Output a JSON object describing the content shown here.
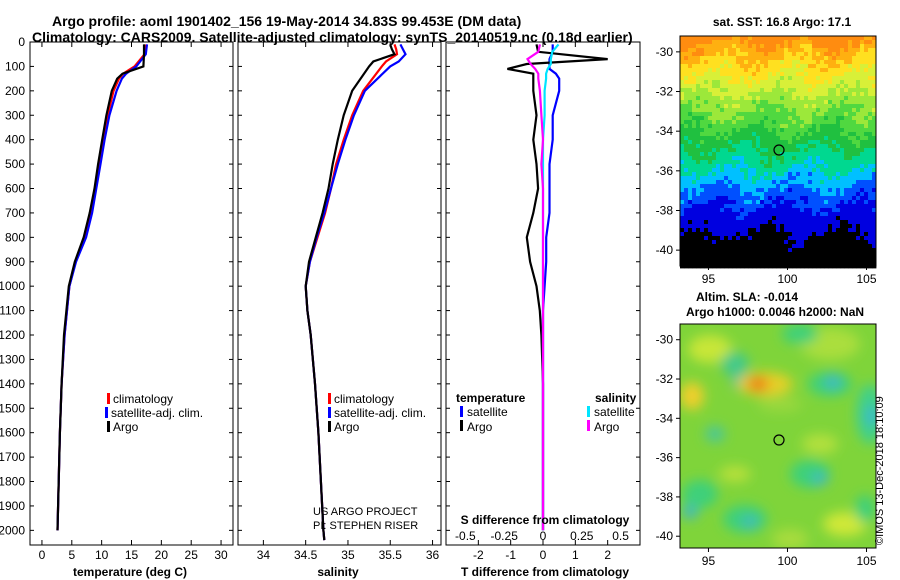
{
  "header": {
    "line1": "Argo profile: aoml 1901402_156 19-May-2014 34.83S 99.453E (DM data)",
    "line2": "Climatology: CARS2009. Satellite-adjusted climatology: synTS_20140519.nc (0.18d earlier)"
  },
  "credits": {
    "project": "US ARGO PROJECT",
    "pi": "PI: STEPHEN RISER"
  },
  "copyright": "©IMOS 13-Dec-2018 18:10:09",
  "maps": {
    "sst_title": "sat. SST: 16.8 Argo: 17.1",
    "sla_title1": "Altim. SLA: -0.014",
    "sla_title2": "Argo h1000: 0.0046 h2000: NaN",
    "float_position": {
      "lon": 99.45,
      "lat": -34.83
    },
    "lat_ticks": [
      "-30",
      "-32",
      "-34",
      "-36",
      "-38",
      "-40"
    ],
    "lon_ticks": [
      "95",
      "100",
      "105"
    ]
  },
  "colors": {
    "climatology": "#ff0000",
    "satellite_adj": "#0000ff",
    "argo": "#000000",
    "salinity_satellite": "#00e5ff",
    "salinity_argo": "#ff00ff"
  },
  "chart_data": [
    {
      "type": "line",
      "xlabel": "temperature (deg C)",
      "ylabel": "",
      "xlim": [
        -2,
        32
      ],
      "ylim": [
        2060,
        0
      ],
      "xticks": [
        "0",
        "5",
        "10",
        "15",
        "20",
        "25",
        "30"
      ],
      "yticks": [
        "0",
        "100",
        "200",
        "300",
        "400",
        "500",
        "600",
        "700",
        "800",
        "900",
        "1000",
        "1100",
        "1200",
        "1300",
        "1400",
        "1500",
        "1600",
        "1700",
        "1800",
        "1900",
        "2000"
      ],
      "legend": [
        "climatology",
        "satellite-adj. clim.",
        "Argo"
      ],
      "legend_position": "bottom-right",
      "depth": [
        10,
        50,
        100,
        130,
        150,
        200,
        300,
        400,
        500,
        600,
        700,
        800,
        900,
        1000,
        1200,
        1400,
        1600,
        1800,
        2000
      ],
      "series": [
        {
          "name": "climatology",
          "values": [
            17.3,
            17.2,
            15.5,
            13.6,
            12.9,
            12.0,
            11.0,
            10.3,
            9.6,
            8.9,
            8.2,
            7.2,
            5.6,
            4.6,
            3.8,
            3.3,
            3.0,
            2.8,
            2.6
          ]
        },
        {
          "name": "satellite-adj. clim.",
          "values": [
            17.6,
            17.4,
            15.8,
            14.1,
            13.4,
            12.5,
            11.3,
            10.5,
            9.8,
            9.1,
            8.4,
            7.4,
            5.7,
            4.6,
            3.8,
            3.3,
            3.0,
            2.8,
            2.6
          ]
        },
        {
          "name": "Argo",
          "values": [
            17.1,
            17.1,
            17.0,
            13.5,
            12.6,
            11.7,
            10.8,
            10.1,
            9.4,
            8.8,
            8.0,
            7.0,
            5.5,
            4.5,
            3.7,
            3.3,
            3.0,
            2.8,
            2.6
          ]
        }
      ]
    },
    {
      "type": "line",
      "xlabel": "salinity",
      "xlim": [
        33.7,
        36.1
      ],
      "ylim": [
        2060,
        0
      ],
      "xticks": [
        "34",
        "34.5",
        "35",
        "35.5",
        "36"
      ],
      "legend": [
        "climatology",
        "satellite-adj. clim.",
        "Argo"
      ],
      "legend_position": "bottom-right",
      "depth": [
        10,
        30,
        50,
        80,
        100,
        200,
        300,
        400,
        500,
        600,
        700,
        800,
        900,
        1000,
        1100,
        1200,
        1400,
        1600,
        1800,
        2000,
        2040
      ],
      "series": [
        {
          "name": "climatology",
          "values": [
            35.55,
            35.57,
            35.58,
            35.45,
            35.4,
            35.18,
            35.05,
            34.95,
            34.86,
            34.8,
            34.73,
            34.64,
            34.55,
            34.5,
            34.52,
            34.56,
            34.61,
            34.65,
            34.68,
            34.71,
            34.72
          ]
        },
        {
          "name": "satellite-adj. clim.",
          "values": [
            35.62,
            35.65,
            35.68,
            35.6,
            35.5,
            35.2,
            35.07,
            34.97,
            34.88,
            34.8,
            34.72,
            34.63,
            34.55,
            34.5,
            34.52,
            34.56,
            34.61,
            34.65,
            34.68,
            34.71,
            34.72
          ]
        },
        {
          "name": "Argo",
          "values": [
            35.5,
            35.52,
            35.55,
            35.3,
            35.25,
            35.05,
            34.95,
            34.88,
            34.82,
            34.77,
            34.7,
            34.62,
            34.54,
            34.5,
            34.52,
            34.56,
            34.61,
            34.65,
            34.68,
            34.71,
            34.72
          ]
        }
      ]
    },
    {
      "type": "line",
      "xlabel": "T difference from climatology",
      "top_axis_label": "S difference from climatology",
      "xlim": [
        -3,
        3
      ],
      "ylim": [
        2060,
        0
      ],
      "xticks": [
        "-2",
        "-1",
        "0",
        "1",
        "2"
      ],
      "top_ticks": [
        "-0.5",
        "-0.25",
        "0",
        "0.25",
        "0.5"
      ],
      "legend_temperature": {
        "title": "temperature",
        "items": [
          "satellite",
          "Argo"
        ]
      },
      "legend_salinity": {
        "title": "salinity",
        "items": [
          "satellite",
          "Argo"
        ]
      },
      "depth": [
        10,
        40,
        70,
        90,
        110,
        130,
        150,
        200,
        300,
        400,
        500,
        600,
        700,
        800,
        900,
        1000,
        1100,
        1200,
        1400,
        1600,
        1800,
        1900,
        2000
      ],
      "series": [
        {
          "name": "temperature satellite",
          "values": [
            0.3,
            0.3,
            0.2,
            0.2,
            0.2,
            0.4,
            0.5,
            0.5,
            0.3,
            0.3,
            0.2,
            0.2,
            0.2,
            0.1,
            0.1,
            0.05,
            0.0,
            0.0,
            0.0,
            0.0,
            0.0,
            0.0,
            0.0
          ]
        },
        {
          "name": "temperature Argo",
          "values": [
            -0.2,
            -0.15,
            2.0,
            -0.5,
            -1.1,
            -0.3,
            -0.3,
            -0.3,
            -0.2,
            -0.3,
            -0.2,
            -0.15,
            -0.3,
            -0.5,
            -0.4,
            -0.2,
            -0.1,
            -0.05,
            0.0,
            0.0,
            0.0,
            0.0,
            0.0
          ]
        },
        {
          "name": "salinity satellite",
          "values": [
            0.1,
            0.06,
            0.05,
            0.05,
            0.03,
            0.02,
            0.02,
            0.01,
            0.01,
            0.0,
            0.0,
            0.0,
            0.0,
            0.0,
            0.0,
            0.0,
            0.0,
            0.0,
            0.0,
            0.0,
            0.0,
            0.0,
            0.0
          ]
        },
        {
          "name": "salinity Argo",
          "values": [
            -0.02,
            -0.03,
            -0.1,
            -0.08,
            -0.05,
            -0.03,
            -0.03,
            -0.02,
            -0.01,
            0.0,
            -0.01,
            0.0,
            0.0,
            0.0,
            0.0,
            0.0,
            0.0,
            0.0,
            0.0,
            0.0,
            0.0,
            0.0,
            0.0
          ]
        }
      ]
    }
  ]
}
